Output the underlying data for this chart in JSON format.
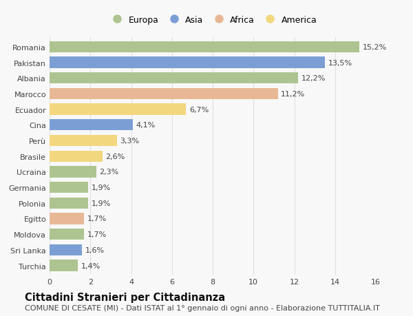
{
  "countries": [
    "Romania",
    "Pakistan",
    "Albania",
    "Marocco",
    "Ecuador",
    "Cina",
    "Perù",
    "Brasile",
    "Ucraina",
    "Germania",
    "Polonia",
    "Egitto",
    "Moldova",
    "Sri Lanka",
    "Turchia"
  ],
  "values": [
    15.2,
    13.5,
    12.2,
    11.2,
    6.7,
    4.1,
    3.3,
    2.6,
    2.3,
    1.9,
    1.9,
    1.7,
    1.7,
    1.6,
    1.4
  ],
  "labels": [
    "15,2%",
    "13,5%",
    "12,2%",
    "11,2%",
    "6,7%",
    "4,1%",
    "3,3%",
    "2,6%",
    "2,3%",
    "1,9%",
    "1,9%",
    "1,7%",
    "1,7%",
    "1,6%",
    "1,4%"
  ],
  "continents": [
    "Europa",
    "Asia",
    "Europa",
    "Africa",
    "America",
    "Asia",
    "America",
    "America",
    "Europa",
    "Europa",
    "Europa",
    "Africa",
    "Europa",
    "Asia",
    "Europa"
  ],
  "continent_colors": {
    "Europa": "#adc490",
    "Asia": "#7b9fd4",
    "Africa": "#e8b896",
    "America": "#f2d77e"
  },
  "legend_order": [
    "Europa",
    "Asia",
    "Africa",
    "America"
  ],
  "title": "Cittadini Stranieri per Cittadinanza",
  "subtitle": "COMUNE DI CESATE (MI) - Dati ISTAT al 1° gennaio di ogni anno - Elaborazione TUTTITALIA.IT",
  "xlim": [
    0,
    16
  ],
  "xticks": [
    0,
    2,
    4,
    6,
    8,
    10,
    12,
    14,
    16
  ],
  "background_color": "#f8f8f8",
  "plot_bg_color": "#f8f8f8",
  "grid_color": "#e0e0e0",
  "bar_height": 0.72,
  "title_fontsize": 10.5,
  "subtitle_fontsize": 8,
  "label_fontsize": 8,
  "tick_fontsize": 8,
  "legend_fontsize": 9
}
